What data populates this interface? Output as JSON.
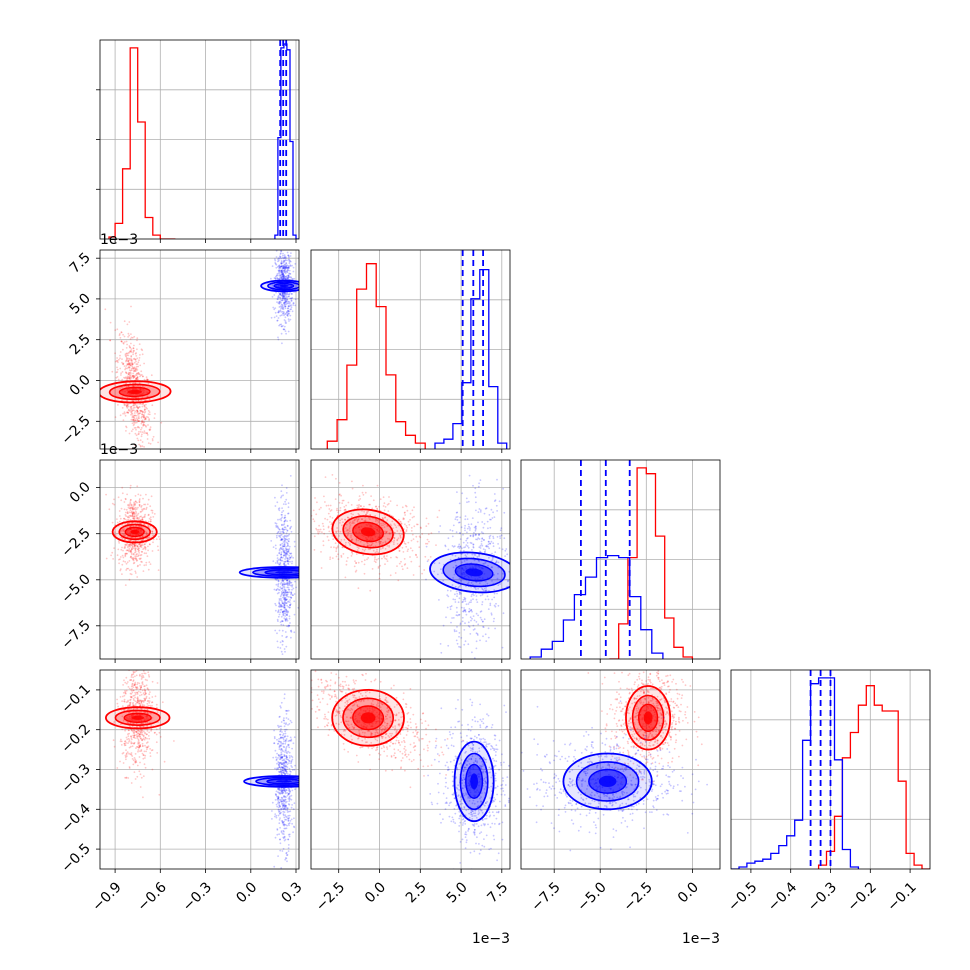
{
  "chart_data": {
    "type": "corner",
    "series_colors": {
      "red": "#ff0000",
      "blue": "#0000ff"
    },
    "axes": {
      "p0": {
        "range": [
          -1.0,
          0.32
        ],
        "ticks": [
          -0.9,
          -0.6,
          -0.3,
          0.0,
          0.3
        ],
        "tick_labels": [
          "−0.9",
          "−0.6",
          "−0.3",
          "0.0",
          "0.3"
        ],
        "offset": ""
      },
      "p1": {
        "range": [
          -4.2,
          8.0
        ],
        "ticks": [
          -2.5,
          0.0,
          2.5,
          5.0,
          7.5
        ],
        "tick_labels": [
          "−2.5",
          "0.0",
          "2.5",
          "5.0",
          "7.5"
        ],
        "offset": "1e−3"
      },
      "p2": {
        "range": [
          -9.3,
          1.5
        ],
        "ticks": [
          -7.5,
          -5.0,
          -2.5,
          0.0
        ],
        "tick_labels": [
          "−7.5",
          "−5.0",
          "−2.5",
          "0.0"
        ],
        "offset": "1e−3"
      },
      "p3": {
        "range": [
          -0.55,
          -0.05
        ],
        "ticks": [
          -0.5,
          -0.4,
          -0.3,
          -0.2,
          -0.1
        ],
        "tick_labels": [
          "−0.5",
          "−0.4",
          "−0.3",
          "−0.2",
          "−0.1"
        ],
        "offset": ""
      }
    },
    "histograms": [
      {
        "param": "p0",
        "ymax": 1.0,
        "series": [
          {
            "color": "red",
            "edges": [
              -0.94,
              -0.9,
              -0.85,
              -0.8,
              -0.75,
              -0.7,
              -0.65,
              -0.6,
              -0.55,
              -0.5
            ],
            "counts": [
              0.01,
              0.08,
              0.36,
              0.98,
              0.6,
              0.11,
              0.02,
              0.0,
              0.0
            ]
          },
          {
            "color": "blue",
            "edges": [
              0.16,
              0.18,
              0.2,
              0.22,
              0.24,
              0.26,
              0.28,
              0.3,
              0.32
            ],
            "counts": [
              0.02,
              0.52,
              0.98,
              1.0,
              0.97,
              0.5,
              0.02,
              0.0
            ]
          }
        ],
        "quantiles": [
          {
            "color": "blue",
            "values": [
              0.195,
              0.215,
              0.235
            ]
          }
        ]
      },
      {
        "param": "p1",
        "ymax": 1.0,
        "series": [
          {
            "color": "red",
            "edges": [
              -3.2,
              -2.6,
              -2.0,
              -1.4,
              -0.8,
              -0.2,
              0.4,
              1.0,
              1.6,
              2.2,
              2.8
            ],
            "counts": [
              0.04,
              0.15,
              0.43,
              0.82,
              0.95,
              0.73,
              0.38,
              0.14,
              0.07,
              0.03
            ]
          },
          {
            "color": "blue",
            "edges": [
              3.4,
              3.95,
              4.5,
              5.05,
              5.6,
              6.15,
              6.7,
              7.25,
              7.8
            ],
            "counts": [
              0.03,
              0.05,
              0.13,
              0.34,
              0.77,
              0.92,
              0.32,
              0.03
            ]
          }
        ],
        "quantiles": [
          {
            "color": "blue",
            "values": [
              5.1,
              5.75,
              6.35
            ]
          }
        ]
      },
      {
        "param": "p2",
        "ymax": 1.0,
        "series": [
          {
            "color": "red",
            "edges": [
              -4.5,
              -4.0,
              -3.5,
              -3.0,
              -2.5,
              -2.0,
              -1.5,
              -1.0,
              -0.5,
              0.0
            ],
            "counts": [
              0.0,
              0.18,
              0.52,
              0.98,
              0.95,
              0.63,
              0.21,
              0.06,
              0.01
            ]
          },
          {
            "color": "blue",
            "edges": [
              -8.8,
              -8.2,
              -7.6,
              -7.0,
              -6.4,
              -5.8,
              -5.2,
              -4.6,
              -4.0,
              -3.4,
              -2.8,
              -2.2,
              -1.6
            ],
            "counts": [
              0.01,
              0.05,
              0.09,
              0.2,
              0.33,
              0.42,
              0.52,
              0.53,
              0.52,
              0.32,
              0.15,
              0.03
            ]
          }
        ],
        "quantiles": [
          {
            "color": "blue",
            "values": [
              -6.05,
              -4.7,
              -3.4
            ]
          }
        ]
      },
      {
        "param": "p3",
        "ymax": 1.0,
        "series": [
          {
            "color": "red",
            "edges": [
              -0.33,
              -0.31,
              -0.29,
              -0.27,
              -0.25,
              -0.23,
              -0.21,
              -0.19,
              -0.17,
              -0.15,
              -0.13,
              -0.11,
              -0.09,
              -0.07,
              -0.05
            ],
            "counts": [
              0.02,
              0.09,
              0.27,
              0.57,
              0.7,
              0.84,
              0.94,
              0.84,
              0.81,
              0.81,
              0.45,
              0.08,
              0.02,
              0.0
            ]
          },
          {
            "color": "blue",
            "edges": [
              -0.55,
              -0.53,
              -0.51,
              -0.49,
              -0.47,
              -0.45,
              -0.43,
              -0.41,
              -0.39,
              -0.37,
              -0.35,
              -0.33,
              -0.31,
              -0.29,
              -0.27,
              -0.25,
              -0.23
            ],
            "counts": [
              0.0,
              0.01,
              0.03,
              0.04,
              0.05,
              0.08,
              0.12,
              0.17,
              0.25,
              0.66,
              0.95,
              0.98,
              0.98,
              0.56,
              0.1,
              0.01
            ]
          }
        ],
        "quantiles": [
          {
            "color": "blue",
            "values": [
              -0.35,
              -0.325,
              -0.3
            ]
          }
        ]
      }
    ],
    "scatter_2d": [
      {
        "x": "p0",
        "y": "p1",
        "series": [
          {
            "color": "red",
            "cx": -0.77,
            "cy": -0.7,
            "sx": 0.035,
            "sy": 1.1,
            "rho": -0.55,
            "n": 700
          },
          {
            "color": "blue",
            "cx": 0.22,
            "cy": 5.8,
            "sx": 0.018,
            "sy": 0.7,
            "rho": 0.0,
            "n": 600
          }
        ]
      },
      {
        "x": "p0",
        "y": "p2",
        "series": [
          {
            "color": "red",
            "cx": -0.77,
            "cy": -2.4,
            "sx": 0.035,
            "sy": 0.6,
            "rho": 0.0,
            "n": 700
          },
          {
            "color": "blue",
            "cx": 0.22,
            "cy": -4.6,
            "sx": 0.018,
            "sy": 1.2,
            "rho": 0.0,
            "n": 600
          }
        ]
      },
      {
        "x": "p0",
        "y": "p3",
        "series": [
          {
            "color": "red",
            "cx": -0.75,
            "cy": -0.17,
            "sx": 0.035,
            "sy": 0.04,
            "rho": 0.0,
            "n": 700
          },
          {
            "color": "blue",
            "cx": 0.22,
            "cy": -0.33,
            "sx": 0.018,
            "sy": 0.05,
            "rho": 0.0,
            "n": 600
          }
        ]
      },
      {
        "x": "p1",
        "y": "p2",
        "series": [
          {
            "color": "red",
            "cx": -0.7,
            "cy": -2.4,
            "sx": 1.1,
            "sy": 0.6,
            "rho": -0.2,
            "n": 700
          },
          {
            "color": "blue",
            "cx": 5.8,
            "cy": -4.6,
            "sx": 0.6,
            "sy": 1.2,
            "rho": 0.15,
            "n": 600
          }
        ]
      },
      {
        "x": "p1",
        "y": "p3",
        "series": [
          {
            "color": "red",
            "cx": -0.7,
            "cy": -0.17,
            "sx": 1.1,
            "sy": 0.035,
            "rho": -0.6,
            "n": 700
          },
          {
            "color": "blue",
            "cx": 5.8,
            "cy": -0.33,
            "sx": 0.6,
            "sy": 0.05,
            "rho": 0.0,
            "n": 600
          }
        ]
      },
      {
        "x": "p2",
        "y": "p3",
        "series": [
          {
            "color": "red",
            "cx": -2.4,
            "cy": -0.17,
            "sx": 0.6,
            "sy": 0.04,
            "rho": 0.1,
            "n": 700
          },
          {
            "color": "blue",
            "cx": -4.6,
            "cy": -0.33,
            "sx": 1.2,
            "sy": 0.035,
            "rho": 0.1,
            "n": 600
          }
        ]
      }
    ]
  }
}
